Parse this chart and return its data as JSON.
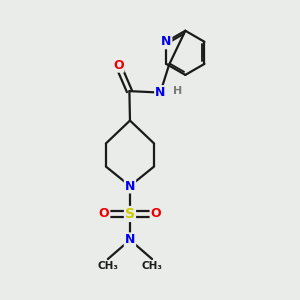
{
  "bg_color": "#eaece9",
  "atom_colors": {
    "N": "#0000ee",
    "O": "#ee0000",
    "S": "#cccc00",
    "C": "#1a1a1a",
    "H": "#7a7a7a"
  },
  "bond_color": "#1a1a1a",
  "bond_width": 1.6
}
